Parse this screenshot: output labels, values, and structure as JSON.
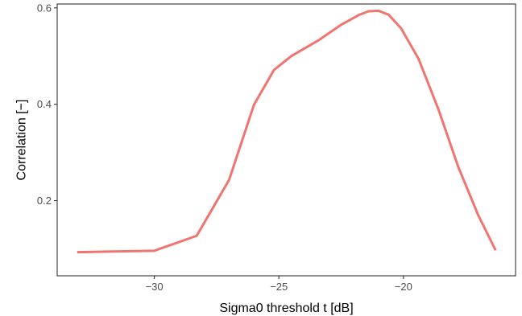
{
  "chart_data": {
    "type": "line",
    "xlabel": "Sigma0 threshold t [dB]",
    "ylabel": "Correlation [−]",
    "xlim": [
      -33.9,
      -15.5
    ],
    "ylim": [
      0.044,
      0.608
    ],
    "x_ticks": [
      {
        "value": -30,
        "label": "−30"
      },
      {
        "value": -25,
        "label": "−25"
      },
      {
        "value": -20,
        "label": "−20"
      }
    ],
    "y_ticks": [
      {
        "value": 0.2,
        "label": "0.2"
      },
      {
        "value": 0.4,
        "label": "0.4"
      },
      {
        "value": 0.6,
        "label": "0.6"
      }
    ],
    "grid": false,
    "legend": "none",
    "series": [
      {
        "color": "#F07470",
        "x": [
          -33.1,
          -30.0,
          -28.3,
          -27.0,
          -26.0,
          -25.2,
          -24.5,
          -23.4,
          -22.5,
          -21.8,
          -21.4,
          -21.0,
          -20.6,
          -20.1,
          -19.4,
          -18.6,
          -17.8,
          -17.0,
          -16.3
        ],
        "y": [
          0.093,
          0.096,
          0.127,
          0.243,
          0.399,
          0.471,
          0.5,
          0.533,
          0.565,
          0.585,
          0.593,
          0.594,
          0.586,
          0.558,
          0.495,
          0.39,
          0.27,
          0.17,
          0.097
        ]
      }
    ]
  }
}
